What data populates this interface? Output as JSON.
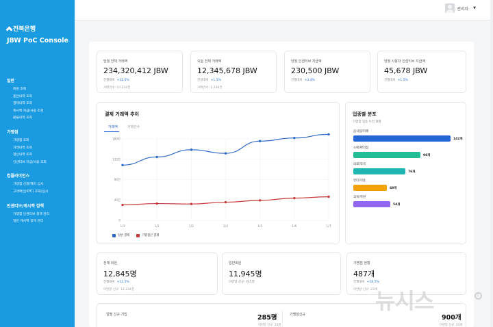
{
  "brand": {
    "bank_name": "전북은행",
    "console_title": "JBW PoC Console"
  },
  "sidebar": {
    "sections": [
      {
        "title": "일반",
        "items": [
          "회원 조회",
          "충전내역 조회",
          "결제내역 조회",
          "캐시백 지급/사용 조회",
          "환불내역 조회"
        ]
      },
      {
        "title": "가맹점",
        "items": [
          "가맹점 조회",
          "거래내역 조회",
          "정산내역 조회",
          "인센티브 지급/사용 조회"
        ]
      },
      {
        "title": "컴플라이언스",
        "items": [
          "가맹점 신청/해지 심사",
          "고객확인(KYC) 조회/심사"
        ]
      },
      {
        "title": "인센티브/캐시백 정책",
        "items": [
          "가맹점 인센티브 정책 관리",
          "일반 캐시백 정책 관리"
        ]
      }
    ]
  },
  "topbar": {
    "user_name": "관리자",
    "caret": "▼"
  },
  "kpis": [
    {
      "label": "당월 전체 거래액",
      "value": "234,320,412 JBW",
      "change_label": "전월대비",
      "change": "+12.5%",
      "sub": "거래건수: 12,234건"
    },
    {
      "label": "오늘 전체 거래액",
      "value": "12,345,678 JBW",
      "change_label": "전일대비",
      "change": "+1.5%",
      "sub": "거래건수: 1,234건"
    },
    {
      "label": "당월 인센티브 지급액",
      "value": "230,500 JBW",
      "change_label": "전월대비",
      "change": "+3.4%",
      "sub": ""
    },
    {
      "label": "당월 사용자 인센티브 지급액",
      "value": "45,678 JBW",
      "change_label": "전월대비",
      "change": "+1.5%",
      "sub": ""
    }
  ],
  "trend": {
    "title": "결제 거래액 추이",
    "tabs": [
      "거래액",
      "거래건수"
    ],
    "legend": [
      "일반 결제",
      "가맹점간 결제"
    ]
  },
  "chart_data": {
    "type": "line",
    "categories": [
      "1/1",
      "1/2",
      "1/3",
      "1/4",
      "1/5",
      "1/6",
      "1/7"
    ],
    "y_ticks": [
      "0",
      "45만",
      "90만",
      "135만",
      "180만"
    ],
    "ylim": [
      0,
      1800000
    ],
    "series": [
      {
        "name": "일반 결제",
        "color": "#2f68c4",
        "values": [
          1220000,
          1400000,
          1560000,
          1480000,
          1750000,
          1820000,
          1900000
        ]
      },
      {
        "name": "가맹점간 결제",
        "color": "#c7393a",
        "values": [
          340000,
          370000,
          360000,
          400000,
          440000,
          490000,
          520000
        ]
      }
    ],
    "grid": true,
    "legend_position": "bottom-left"
  },
  "industry": {
    "title": "업종별 분포",
    "subtitle": "가맹점 업종 누적 현황",
    "items": [
      {
        "label": "음식점/카페",
        "value": "142개",
        "count": 142,
        "color": "#2666d6"
      },
      {
        "label": "소매/편의점",
        "value": "98개",
        "count": 98,
        "color": "#22bd97"
      },
      {
        "label": "의료/약국",
        "value": "76개",
        "count": 76,
        "color": "#1fb5b3"
      },
      {
        "label": "뷰티/미용",
        "value": "49개",
        "count": 49,
        "color": "#f2a20a"
      },
      {
        "label": "교육/학원",
        "value": "54개",
        "count": 54,
        "color": "#9366f0"
      }
    ]
  },
  "members": [
    {
      "label": "전체 회원",
      "value": "12,845명",
      "change_label": "전월대비",
      "change": "+12.5%",
      "sub": "이번달 신규: 12,234건"
    },
    {
      "label": "일반회원",
      "value": "11,945명",
      "sub": "이번달 신규: 445명"
    },
    {
      "label": "가맹점 현황",
      "value": "487개",
      "change_label": "전월대비",
      "change": "+18.5%",
      "sub": "이번달 신규: 23개"
    }
  ],
  "bottom": {
    "left_label": "일별 신규 가입",
    "left_value": "285명",
    "left_sub": "이번달 신규: 23명",
    "right_label": "가맹점신규",
    "right_value": "900개",
    "right_sub": "이번달 신규: 23개"
  },
  "watermark": {
    "text": "뉴시스",
    "circle": "C"
  }
}
